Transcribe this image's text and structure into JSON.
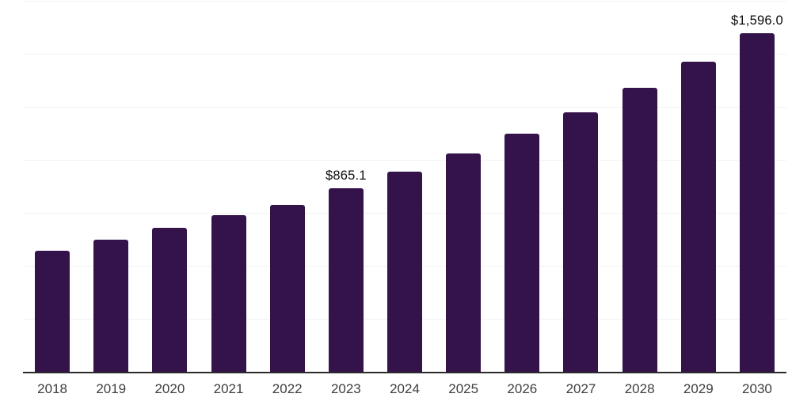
{
  "chart_data": {
    "type": "bar",
    "title": "",
    "xlabel": "",
    "ylabel": "",
    "categories": [
      "2018",
      "2019",
      "2020",
      "2021",
      "2022",
      "2023",
      "2024",
      "2025",
      "2026",
      "2027",
      "2028",
      "2029",
      "2030"
    ],
    "values": [
      570,
      624,
      678,
      737,
      789,
      865.1,
      944,
      1031,
      1124,
      1225,
      1341,
      1464,
      1596.0
    ],
    "data_labels": [
      {
        "category": "2023",
        "text": "$865.1"
      },
      {
        "category": "2030",
        "text": "$1,596.0"
      }
    ],
    "ylim": [
      0,
      1750
    ],
    "gridline_interval": 250,
    "grid": "horizontal",
    "y_axis_tick_labels_visible": false,
    "legend": "none"
  },
  "colors": {
    "background": "#ffffff",
    "bar": "#34124a",
    "axis_line": "#2b2b2b",
    "gridline": "#f1f1f4",
    "tick_text": "#3d3d3d",
    "data_label_text": "#0d0d0d"
  }
}
